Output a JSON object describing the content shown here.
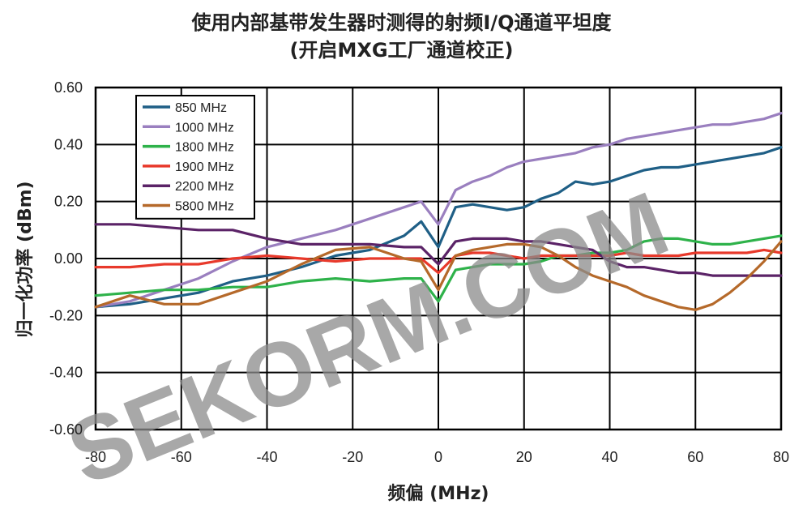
{
  "chart_data": {
    "type": "line",
    "title": "使用内部基带发生器时测得的射频I/Q通道平坦度",
    "subtitle": "(开启MXG工厂通道校正)",
    "xlabel": "频偏 (MHz)",
    "ylabel": "归一化功率 (dBm)",
    "xlim": [
      -80,
      80
    ],
    "ylim": [
      -0.6,
      0.6
    ],
    "x_ticks": [
      "-80",
      "-60",
      "-40",
      "-20",
      "0",
      "20",
      "40",
      "60",
      "80"
    ],
    "y_ticks": [
      "0.60",
      "0.40",
      "0.20",
      "0.00",
      "-0.20",
      "-0.40",
      "-0.60"
    ],
    "grid": true,
    "legend_position": "top-left",
    "series": [
      {
        "name": "850 MHz",
        "color": "#1f5f86",
        "points": [
          [
            -80,
            -0.17
          ],
          [
            -72,
            -0.16
          ],
          [
            -64,
            -0.14
          ],
          [
            -56,
            -0.12
          ],
          [
            -48,
            -0.08
          ],
          [
            -40,
            -0.06
          ],
          [
            -32,
            -0.03
          ],
          [
            -24,
            0.01
          ],
          [
            -16,
            0.03
          ],
          [
            -8,
            0.08
          ],
          [
            -4,
            0.13
          ],
          [
            0,
            0.04
          ],
          [
            4,
            0.18
          ],
          [
            8,
            0.19
          ],
          [
            12,
            0.18
          ],
          [
            16,
            0.17
          ],
          [
            20,
            0.18
          ],
          [
            24,
            0.21
          ],
          [
            28,
            0.23
          ],
          [
            32,
            0.27
          ],
          [
            36,
            0.26
          ],
          [
            40,
            0.27
          ],
          [
            44,
            0.29
          ],
          [
            48,
            0.31
          ],
          [
            52,
            0.32
          ],
          [
            56,
            0.32
          ],
          [
            60,
            0.33
          ],
          [
            64,
            0.34
          ],
          [
            68,
            0.35
          ],
          [
            72,
            0.36
          ],
          [
            76,
            0.37
          ],
          [
            80,
            0.39
          ]
        ]
      },
      {
        "name": "1000 MHz",
        "color": "#9a7fbf",
        "points": [
          [
            -80,
            -0.17
          ],
          [
            -72,
            -0.15
          ],
          [
            -64,
            -0.11
          ],
          [
            -56,
            -0.07
          ],
          [
            -48,
            -0.01
          ],
          [
            -40,
            0.04
          ],
          [
            -32,
            0.07
          ],
          [
            -24,
            0.1
          ],
          [
            -16,
            0.14
          ],
          [
            -8,
            0.18
          ],
          [
            -4,
            0.2
          ],
          [
            0,
            0.12
          ],
          [
            4,
            0.24
          ],
          [
            8,
            0.27
          ],
          [
            12,
            0.29
          ],
          [
            16,
            0.32
          ],
          [
            20,
            0.34
          ],
          [
            24,
            0.35
          ],
          [
            28,
            0.36
          ],
          [
            32,
            0.37
          ],
          [
            36,
            0.39
          ],
          [
            40,
            0.4
          ],
          [
            44,
            0.42
          ],
          [
            48,
            0.43
          ],
          [
            52,
            0.44
          ],
          [
            56,
            0.45
          ],
          [
            60,
            0.46
          ],
          [
            64,
            0.47
          ],
          [
            68,
            0.47
          ],
          [
            72,
            0.48
          ],
          [
            76,
            0.49
          ],
          [
            80,
            0.51
          ]
        ]
      },
      {
        "name": "1800 MHz",
        "color": "#2eb24a",
        "points": [
          [
            -80,
            -0.13
          ],
          [
            -72,
            -0.12
          ],
          [
            -64,
            -0.11
          ],
          [
            -56,
            -0.11
          ],
          [
            -48,
            -0.1
          ],
          [
            -40,
            -0.1
          ],
          [
            -32,
            -0.08
          ],
          [
            -24,
            -0.07
          ],
          [
            -16,
            -0.08
          ],
          [
            -8,
            -0.07
          ],
          [
            -4,
            -0.07
          ],
          [
            0,
            -0.15
          ],
          [
            4,
            -0.04
          ],
          [
            8,
            -0.03
          ],
          [
            12,
            -0.02
          ],
          [
            16,
            -0.02
          ],
          [
            20,
            -0.02
          ],
          [
            24,
            -0.01
          ],
          [
            28,
            0.01
          ],
          [
            32,
            0.01
          ],
          [
            36,
            0.02
          ],
          [
            40,
            0.02
          ],
          [
            44,
            0.03
          ],
          [
            48,
            0.06
          ],
          [
            52,
            0.07
          ],
          [
            56,
            0.07
          ],
          [
            60,
            0.06
          ],
          [
            64,
            0.05
          ],
          [
            68,
            0.05
          ],
          [
            72,
            0.06
          ],
          [
            76,
            0.07
          ],
          [
            80,
            0.08
          ]
        ]
      },
      {
        "name": "1900 MHz",
        "color": "#e8392b",
        "points": [
          [
            -80,
            -0.03
          ],
          [
            -72,
            -0.03
          ],
          [
            -64,
            -0.02
          ],
          [
            -56,
            -0.02
          ],
          [
            -48,
            0.0
          ],
          [
            -40,
            0.01
          ],
          [
            -32,
            0.0
          ],
          [
            -24,
            -0.01
          ],
          [
            -16,
            0.0
          ],
          [
            -8,
            0.0
          ],
          [
            -4,
            0.0
          ],
          [
            0,
            -0.05
          ],
          [
            4,
            0.01
          ],
          [
            8,
            0.02
          ],
          [
            12,
            0.02
          ],
          [
            16,
            0.01
          ],
          [
            20,
            0.0
          ],
          [
            24,
            0.01
          ],
          [
            28,
            0.01
          ],
          [
            32,
            0.01
          ],
          [
            36,
            0.01
          ],
          [
            40,
            0.01
          ],
          [
            44,
            0.02
          ],
          [
            48,
            0.01
          ],
          [
            52,
            0.01
          ],
          [
            56,
            0.01
          ],
          [
            60,
            0.02
          ],
          [
            64,
            0.02
          ],
          [
            68,
            0.02
          ],
          [
            72,
            0.02
          ],
          [
            76,
            0.03
          ],
          [
            80,
            0.02
          ]
        ]
      },
      {
        "name": "2200 MHz",
        "color": "#5b2367",
        "points": [
          [
            -80,
            0.12
          ],
          [
            -72,
            0.12
          ],
          [
            -64,
            0.11
          ],
          [
            -56,
            0.1
          ],
          [
            -48,
            0.1
          ],
          [
            -40,
            0.07
          ],
          [
            -32,
            0.05
          ],
          [
            -24,
            0.05
          ],
          [
            -16,
            0.05
          ],
          [
            -8,
            0.04
          ],
          [
            -4,
            0.04
          ],
          [
            0,
            -0.02
          ],
          [
            4,
            0.06
          ],
          [
            8,
            0.07
          ],
          [
            12,
            0.07
          ],
          [
            16,
            0.07
          ],
          [
            20,
            0.06
          ],
          [
            24,
            0.06
          ],
          [
            28,
            0.05
          ],
          [
            32,
            0.04
          ],
          [
            36,
            0.03
          ],
          [
            40,
            -0.01
          ],
          [
            44,
            -0.03
          ],
          [
            48,
            -0.03
          ],
          [
            52,
            -0.04
          ],
          [
            56,
            -0.05
          ],
          [
            60,
            -0.05
          ],
          [
            64,
            -0.06
          ],
          [
            68,
            -0.06
          ],
          [
            72,
            -0.06
          ],
          [
            76,
            -0.06
          ],
          [
            80,
            -0.06
          ]
        ]
      },
      {
        "name": "5800 MHz",
        "color": "#b5692a",
        "points": [
          [
            -80,
            -0.17
          ],
          [
            -72,
            -0.13
          ],
          [
            -64,
            -0.16
          ],
          [
            -56,
            -0.16
          ],
          [
            -48,
            -0.12
          ],
          [
            -40,
            -0.08
          ],
          [
            -32,
            -0.02
          ],
          [
            -24,
            0.03
          ],
          [
            -16,
            0.04
          ],
          [
            -8,
            0.0
          ],
          [
            -4,
            -0.01
          ],
          [
            0,
            -0.11
          ],
          [
            4,
            0.01
          ],
          [
            8,
            0.03
          ],
          [
            12,
            0.04
          ],
          [
            16,
            0.05
          ],
          [
            20,
            0.05
          ],
          [
            24,
            0.04
          ],
          [
            28,
            0.01
          ],
          [
            32,
            -0.03
          ],
          [
            36,
            -0.06
          ],
          [
            40,
            -0.08
          ],
          [
            44,
            -0.1
          ],
          [
            48,
            -0.13
          ],
          [
            52,
            -0.15
          ],
          [
            56,
            -0.17
          ],
          [
            60,
            -0.18
          ],
          [
            64,
            -0.16
          ],
          [
            68,
            -0.12
          ],
          [
            72,
            -0.07
          ],
          [
            76,
            -0.01
          ],
          [
            80,
            0.06
          ]
        ]
      }
    ]
  },
  "watermark": "SEKORM.COM"
}
